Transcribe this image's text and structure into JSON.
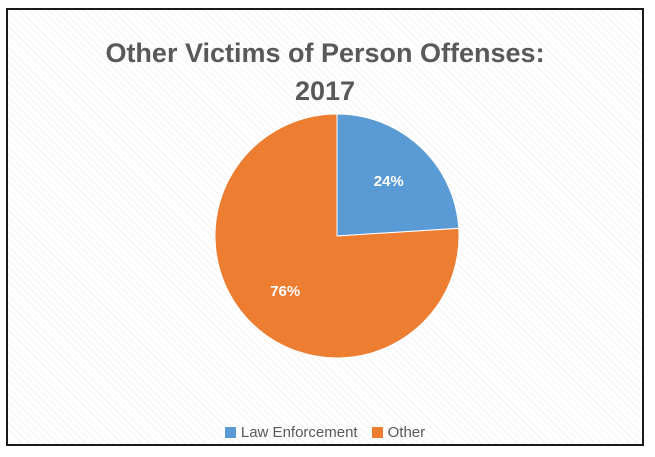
{
  "chart_data": {
    "type": "pie",
    "title_lines": [
      "Other Victims of Person Offenses:",
      "2017"
    ],
    "slices": [
      {
        "label": "Law Enforcement",
        "value": 24,
        "value_label": "24%",
        "color": "#5b9bd5"
      },
      {
        "label": "Other",
        "value": 76,
        "value_label": "76%",
        "color": "#ed7d31"
      }
    ],
    "legend_position": "bottom"
  }
}
